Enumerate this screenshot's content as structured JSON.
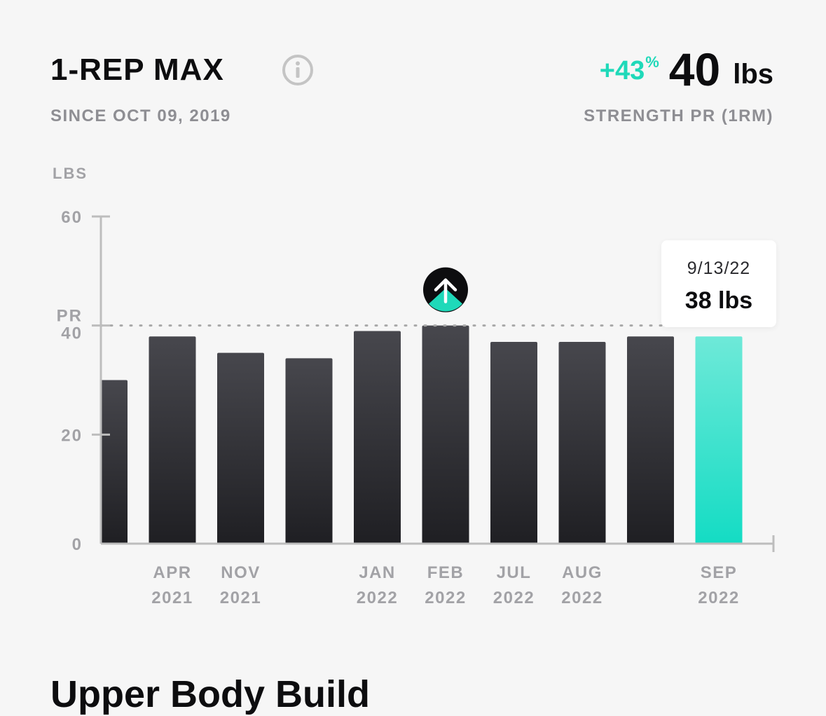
{
  "header": {
    "title": "1-REP MAX",
    "subtitle": "SINCE OCT 09, 2019",
    "change": "+43",
    "change_unit": "%",
    "value": "40",
    "unit": "lbs",
    "value_label": "STRENGTH PR (1RM)",
    "info_icon": "info-icon"
  },
  "colors": {
    "accent": "#1fd9b9",
    "bar_top": "#47474d",
    "bar_bottom": "#1f1f23",
    "highlight_top": "#6ee9d8",
    "highlight_bottom": "#14dcc4",
    "axis": "#bdbdbd",
    "text_muted": "#a2a2a6"
  },
  "chart_data": {
    "type": "bar",
    "ylabel": "LBS",
    "ylim": [
      0,
      60
    ],
    "yticks": [
      "0",
      "20",
      "40",
      "60"
    ],
    "pr_label": "PR",
    "pr_value": 40,
    "categories": [
      {
        "line1": "",
        "line2": ""
      },
      {
        "line1": "APR",
        "line2": "2021"
      },
      {
        "line1": "NOV",
        "line2": "2021"
      },
      {
        "line1": "",
        "line2": ""
      },
      {
        "line1": "JAN",
        "line2": "2022"
      },
      {
        "line1": "FEB",
        "line2": "2022"
      },
      {
        "line1": "JUL",
        "line2": "2022"
      },
      {
        "line1": "AUG",
        "line2": "2022"
      },
      {
        "line1": "",
        "line2": ""
      },
      {
        "line1": "SEP",
        "line2": "2022"
      }
    ],
    "values": [
      30,
      38,
      35,
      34,
      39,
      40,
      37,
      37,
      38,
      38
    ],
    "highlight_index": 9,
    "pr_index": 5,
    "pr_icon": "pr-arrow-up-icon",
    "grid": false
  },
  "tooltip": {
    "date": "9/13/22",
    "value": "38 lbs"
  },
  "section": {
    "title": "Upper Body Build"
  }
}
